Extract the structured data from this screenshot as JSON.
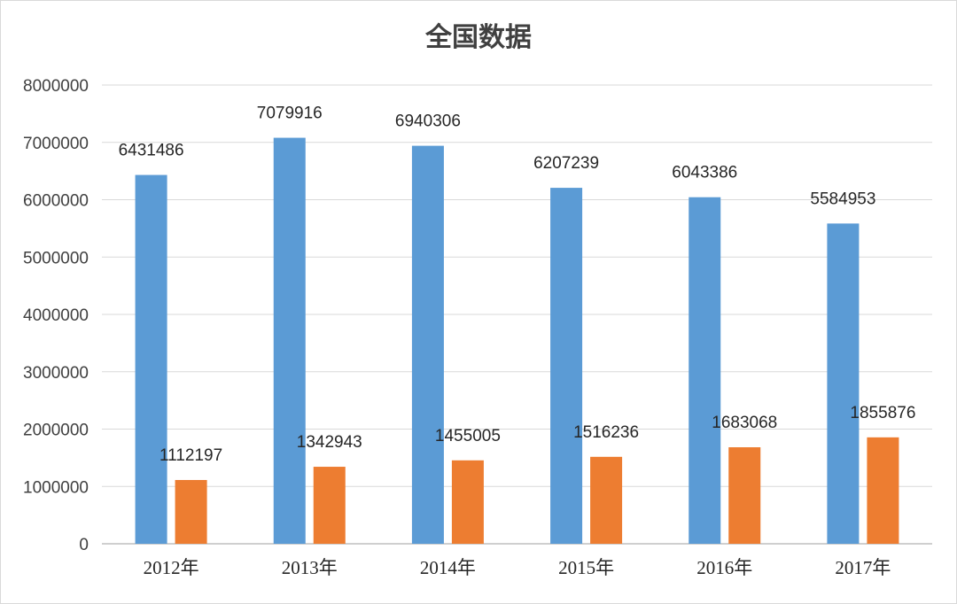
{
  "chart_data": {
    "type": "bar",
    "title": "全国数据",
    "xlabel": "",
    "ylabel": "",
    "categories": [
      "2012年",
      "2013年",
      "2014年",
      "2015年",
      "2016年",
      "2017年"
    ],
    "ylim": [
      0,
      8000000
    ],
    "yticks": [
      0,
      1000000,
      2000000,
      3000000,
      4000000,
      5000000,
      6000000,
      7000000,
      8000000
    ],
    "ytick_labels": [
      "0",
      "1000000",
      "2000000",
      "3000000",
      "4000000",
      "5000000",
      "6000000",
      "7000000",
      "8000000"
    ],
    "grid": true,
    "legend": "none",
    "series": [
      {
        "values": [
          6431486,
          7079916,
          6940306,
          6207239,
          6043386,
          5584953
        ],
        "color": "#5b9bd5"
      },
      {
        "values": [
          1112197,
          1342943,
          1455005,
          1516236,
          1683068,
          1855876
        ],
        "color": "#ed7d31"
      }
    ]
  }
}
